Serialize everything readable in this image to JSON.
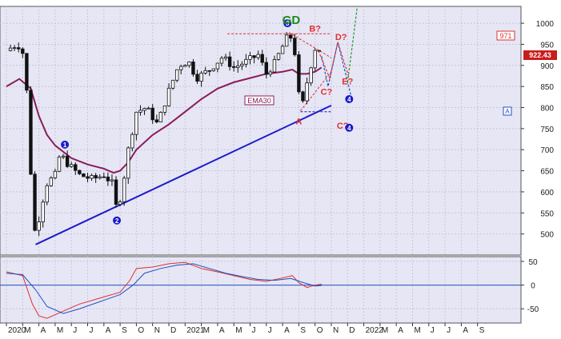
{
  "chart_data": [
    {
      "type": "candlestick",
      "title": "GD",
      "ylim": [
        450,
        1040
      ],
      "y_ticks": [
        500,
        550,
        600,
        650,
        700,
        750,
        800,
        850,
        900,
        950,
        1000
      ],
      "x_ticks": [
        "2020",
        "M",
        "A",
        "M",
        "J",
        "J",
        "A",
        "S",
        "O",
        "N",
        "D",
        "2021",
        "M",
        "A",
        "M",
        "J",
        "J",
        "A",
        "S",
        "O",
        "N",
        "D",
        "2022",
        "M",
        "A",
        "M",
        "J",
        "J",
        "A",
        "S"
      ],
      "grid": true,
      "price_label": "922.43",
      "target_label": "971",
      "ema_label": "EMA30",
      "price_path": [
        {
          "m": 0.0,
          "v": 935
        },
        {
          "m": 0.4,
          "v": 945
        },
        {
          "m": 0.7,
          "v": 950
        },
        {
          "m": 1.0,
          "v": 930
        },
        {
          "m": 1.3,
          "v": 820
        },
        {
          "m": 1.6,
          "v": 560
        },
        {
          "m": 1.8,
          "v": 490
        },
        {
          "m": 2.1,
          "v": 560
        },
        {
          "m": 2.5,
          "v": 620
        },
        {
          "m": 3.0,
          "v": 640
        },
        {
          "m": 3.3,
          "v": 690
        },
        {
          "m": 3.8,
          "v": 665
        },
        {
          "m": 4.5,
          "v": 640
        },
        {
          "m": 5.3,
          "v": 630
        },
        {
          "m": 6.0,
          "v": 640
        },
        {
          "m": 6.5,
          "v": 620
        },
        {
          "m": 6.8,
          "v": 555
        },
        {
          "m": 7.1,
          "v": 600
        },
        {
          "m": 7.5,
          "v": 700
        },
        {
          "m": 8.0,
          "v": 790
        },
        {
          "m": 8.6,
          "v": 800
        },
        {
          "m": 9.3,
          "v": 760
        },
        {
          "m": 10.0,
          "v": 840
        },
        {
          "m": 10.6,
          "v": 900
        },
        {
          "m": 11.2,
          "v": 910
        },
        {
          "m": 11.7,
          "v": 870
        },
        {
          "m": 12.5,
          "v": 890
        },
        {
          "m": 13.3,
          "v": 920
        },
        {
          "m": 14.0,
          "v": 895
        },
        {
          "m": 14.8,
          "v": 910
        },
        {
          "m": 15.5,
          "v": 925
        },
        {
          "m": 16.0,
          "v": 880
        },
        {
          "m": 16.5,
          "v": 905
        },
        {
          "m": 17.0,
          "v": 945
        },
        {
          "m": 17.4,
          "v": 975
        },
        {
          "m": 17.7,
          "v": 950
        },
        {
          "m": 18.0,
          "v": 830
        },
        {
          "m": 18.2,
          "v": 800
        },
        {
          "m": 18.5,
          "v": 860
        },
        {
          "m": 18.8,
          "v": 910
        },
        {
          "m": 19.1,
          "v": 955
        },
        {
          "m": 19.4,
          "v": 922
        }
      ],
      "ema_path": [
        {
          "m": 0.0,
          "v": 850
        },
        {
          "m": 0.8,
          "v": 868
        },
        {
          "m": 1.5,
          "v": 845
        },
        {
          "m": 2.0,
          "v": 780
        },
        {
          "m": 2.5,
          "v": 735
        },
        {
          "m": 3.0,
          "v": 710
        },
        {
          "m": 4.0,
          "v": 680
        },
        {
          "m": 5.0,
          "v": 665
        },
        {
          "m": 6.0,
          "v": 655
        },
        {
          "m": 6.6,
          "v": 645
        },
        {
          "m": 7.0,
          "v": 650
        },
        {
          "m": 7.5,
          "v": 670
        },
        {
          "m": 8.0,
          "v": 700
        },
        {
          "m": 9.0,
          "v": 735
        },
        {
          "m": 10.0,
          "v": 760
        },
        {
          "m": 11.0,
          "v": 790
        },
        {
          "m": 12.0,
          "v": 820
        },
        {
          "m": 13.0,
          "v": 845
        },
        {
          "m": 14.0,
          "v": 860
        },
        {
          "m": 15.0,
          "v": 870
        },
        {
          "m": 16.0,
          "v": 880
        },
        {
          "m": 17.0,
          "v": 885
        },
        {
          "m": 17.6,
          "v": 890
        },
        {
          "m": 18.0,
          "v": 880
        },
        {
          "m": 18.5,
          "v": 880
        },
        {
          "m": 19.0,
          "v": 885
        },
        {
          "m": 19.4,
          "v": 895
        }
      ],
      "trendlines": [
        {
          "name": "support",
          "from": {
            "m": 1.8,
            "v": 475
          },
          "to": {
            "m": 20.0,
            "v": 805
          },
          "color": "#1c1cc8"
        },
        {
          "name": "horizontal",
          "from": {
            "m": 18.1,
            "v": 790
          },
          "to": {
            "m": 20.0,
            "v": 790
          },
          "color": "#1c1cc8"
        },
        {
          "name": "wedge-top",
          "from": {
            "m": 13.6,
            "v": 975
          },
          "to": {
            "m": 20.0,
            "v": 975
          },
          "color": "#e03030"
        },
        {
          "name": "wedge-upper",
          "from": {
            "m": 17.4,
            "v": 978
          },
          "to": {
            "m": 20.0,
            "v": 918
          },
          "color": "#e03030"
        },
        {
          "name": "wedge-lower",
          "from": {
            "m": 18.1,
            "v": 792
          },
          "to": {
            "m": 20.0,
            "v": 885
          },
          "color": "#e03030"
        }
      ],
      "projection_paths": [
        {
          "name": "blue-projection",
          "color": "#2050c0",
          "points": [
            {
              "m": 19.4,
              "v": 922
            },
            {
              "m": 19.8,
              "v": 850
            },
            {
              "m": 20.4,
              "v": 955
            },
            {
              "m": 21.2,
              "v": 830
            }
          ]
        },
        {
          "name": "red-projection",
          "color": "#e03030",
          "points": [
            {
              "m": 19.2,
              "v": 935
            },
            {
              "m": 19.9,
              "v": 870
            },
            {
              "m": 20.4,
              "v": 955
            },
            {
              "m": 21.1,
              "v": 870
            }
          ]
        },
        {
          "name": "green-projection",
          "color": "#1f9a1f",
          "points": [
            {
              "m": 21.0,
              "v": 860
            },
            {
              "m": 21.6,
              "v": 1040
            }
          ]
        }
      ],
      "annotations": [
        {
          "text": "A",
          "m": 18.0,
          "v": 760,
          "color": "#e03030"
        },
        {
          "text": "B?",
          "m": 19.0,
          "v": 980,
          "color": "#e03030"
        },
        {
          "text": "C?",
          "m": 19.7,
          "v": 830,
          "color": "#e03030"
        },
        {
          "text": "D?",
          "m": 20.6,
          "v": 960,
          "color": "#e03030"
        },
        {
          "text": "E?",
          "m": 21.0,
          "v": 855,
          "color": "#e03030"
        },
        {
          "text": "C?",
          "m": 20.7,
          "v": 750,
          "color": "#e03030"
        }
      ],
      "wave_markers": [
        {
          "label": "1",
          "m": 3.6,
          "v": 712
        },
        {
          "label": "2",
          "m": 6.8,
          "v": 532
        },
        {
          "label": "3",
          "m": 17.3,
          "v": 1000
        },
        {
          "label": "4",
          "m": 21.1,
          "v": 820
        },
        {
          "label": "4",
          "m": 21.1,
          "v": 752
        }
      ]
    },
    {
      "type": "line",
      "panel": "macd",
      "ylim": [
        -80,
        60
      ],
      "y_ticks": [
        50,
        0,
        -50
      ],
      "zero_line": true,
      "series": [
        {
          "color": "#e03030",
          "points": [
            {
              "m": 0.0,
              "v": 28
            },
            {
              "m": 1.0,
              "v": 20
            },
            {
              "m": 1.6,
              "v": -40
            },
            {
              "m": 2.0,
              "v": -65
            },
            {
              "m": 2.5,
              "v": -70
            },
            {
              "m": 3.5,
              "v": -55
            },
            {
              "m": 4.5,
              "v": -40
            },
            {
              "m": 6.0,
              "v": -25
            },
            {
              "m": 7.0,
              "v": -15
            },
            {
              "m": 7.6,
              "v": 10
            },
            {
              "m": 8.0,
              "v": 35
            },
            {
              "m": 9.0,
              "v": 38
            },
            {
              "m": 10.0,
              "v": 45
            },
            {
              "m": 11.0,
              "v": 48
            },
            {
              "m": 12.0,
              "v": 35
            },
            {
              "m": 13.0,
              "v": 28
            },
            {
              "m": 14.0,
              "v": 20
            },
            {
              "m": 15.0,
              "v": 12
            },
            {
              "m": 16.0,
              "v": 8
            },
            {
              "m": 17.0,
              "v": 15
            },
            {
              "m": 17.6,
              "v": 20
            },
            {
              "m": 18.0,
              "v": 5
            },
            {
              "m": 18.5,
              "v": -5
            },
            {
              "m": 19.0,
              "v": 0
            },
            {
              "m": 19.4,
              "v": 2
            }
          ]
        },
        {
          "color": "#2050c0",
          "points": [
            {
              "m": 0.0,
              "v": 25
            },
            {
              "m": 1.0,
              "v": 22
            },
            {
              "m": 1.8,
              "v": -10
            },
            {
              "m": 2.5,
              "v": -45
            },
            {
              "m": 3.5,
              "v": -60
            },
            {
              "m": 4.5,
              "v": -50
            },
            {
              "m": 6.0,
              "v": -32
            },
            {
              "m": 7.0,
              "v": -20
            },
            {
              "m": 7.8,
              "v": 0
            },
            {
              "m": 8.5,
              "v": 25
            },
            {
              "m": 9.5,
              "v": 35
            },
            {
              "m": 10.5,
              "v": 42
            },
            {
              "m": 11.5,
              "v": 45
            },
            {
              "m": 12.5,
              "v": 35
            },
            {
              "m": 13.5,
              "v": 25
            },
            {
              "m": 14.5,
              "v": 18
            },
            {
              "m": 15.5,
              "v": 12
            },
            {
              "m": 16.5,
              "v": 10
            },
            {
              "m": 17.5,
              "v": 14
            },
            {
              "m": 18.3,
              "v": 5
            },
            {
              "m": 19.0,
              "v": -2
            },
            {
              "m": 19.4,
              "v": -1
            }
          ]
        }
      ]
    }
  ]
}
